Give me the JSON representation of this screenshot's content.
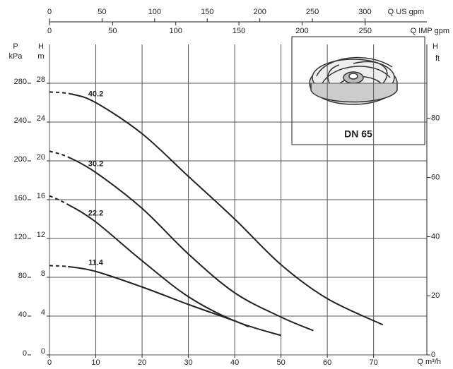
{
  "chart_data": {
    "type": "line",
    "x_label": "Q m³/h",
    "y_label": [
      "H",
      "m"
    ],
    "y2_label": [
      "P",
      "kPa"
    ],
    "y3_label": [
      "H",
      "ft"
    ],
    "top_label": "Q US gpm",
    "top2_label": "Q IMP gpm",
    "inset_label": "DN 65",
    "xlim": [
      0,
      81.5
    ],
    "xticks": [
      0,
      10,
      20,
      30,
      40,
      50,
      60,
      70
    ],
    "ylim": [
      0,
      32
    ],
    "yticks": [
      0,
      4,
      8,
      12,
      16,
      20,
      24,
      28
    ],
    "y2lim": [
      0,
      320
    ],
    "y2ticks": [
      0,
      40,
      80,
      120,
      160,
      200,
      240,
      280
    ],
    "y3lim": [
      0,
      105
    ],
    "y3ticks": [
      0,
      20,
      40,
      60,
      80
    ],
    "toplim": [
      0,
      358.8
    ],
    "topticks": [
      0,
      50,
      100,
      150,
      200,
      250,
      300
    ],
    "top2lim": [
      0,
      298.8
    ],
    "top2ticks": [
      0,
      50,
      100,
      150,
      200,
      250
    ],
    "grid": true,
    "series": [
      {
        "name": "40.2",
        "color": "#222222",
        "x": [
          0,
          4.6,
          10,
          20,
          30,
          40,
          50,
          60,
          72
        ],
        "values": [
          27.1,
          26.9,
          26.0,
          22.8,
          18.4,
          14.0,
          9.3,
          5.8,
          3.1
        ]
      },
      {
        "name": "30.2",
        "color": "#222222",
        "x": [
          0,
          4,
          10,
          20,
          30,
          40,
          50,
          57
        ],
        "values": [
          21.0,
          20.4,
          18.8,
          15.1,
          10.4,
          6.4,
          3.9,
          2.5
        ]
      },
      {
        "name": "22.2",
        "color": "#222222",
        "x": [
          0,
          4,
          10,
          20,
          30,
          40,
          50
        ],
        "values": [
          16.4,
          15.5,
          13.7,
          9.7,
          6.0,
          3.5,
          2.0
        ]
      },
      {
        "name": "11.4",
        "color": "#222222",
        "x": [
          0,
          4,
          10,
          20,
          30,
          40,
          43
        ],
        "values": [
          9.2,
          9.1,
          8.6,
          7.0,
          5.2,
          3.5,
          2.9
        ]
      }
    ]
  }
}
